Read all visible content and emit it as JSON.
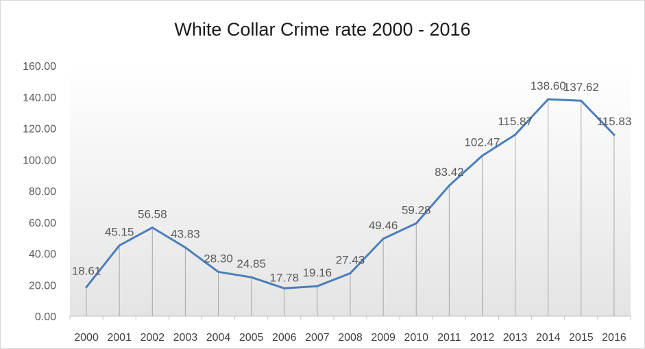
{
  "chart_data": {
    "type": "line",
    "title": "White Collar Crime rate 2000 - 2016",
    "xlabel": "",
    "ylabel": "",
    "ylim": [
      0,
      160
    ],
    "y_ticks": [
      "0.00",
      "20.00",
      "40.00",
      "60.00",
      "80.00",
      "100.00",
      "120.00",
      "140.00",
      "160.00"
    ],
    "categories": [
      "2000",
      "2001",
      "2002",
      "2003",
      "2004",
      "2005",
      "2006",
      "2007",
      "2008",
      "2009",
      "2010",
      "2011",
      "2012",
      "2013",
      "2014",
      "2015",
      "2016"
    ],
    "series": [
      {
        "values": [
          18.61,
          45.15,
          56.58,
          43.83,
          28.3,
          24.85,
          17.78,
          19.16,
          27.43,
          49.46,
          59.28,
          83.42,
          102.47,
          115.87,
          138.6,
          137.62,
          115.83
        ],
        "labels": [
          "18.61",
          "45.15",
          "56.58",
          "43.83",
          "28.30",
          "24.85",
          "17.78",
          "19.16",
          "27.43",
          "49.46",
          "59.28",
          "83.42",
          "102.47",
          "115.87",
          "138.60",
          "137.62",
          "115.83"
        ],
        "color": "#4a7ebb"
      }
    ],
    "grid": false,
    "drop_lines": true,
    "legend": "none"
  }
}
